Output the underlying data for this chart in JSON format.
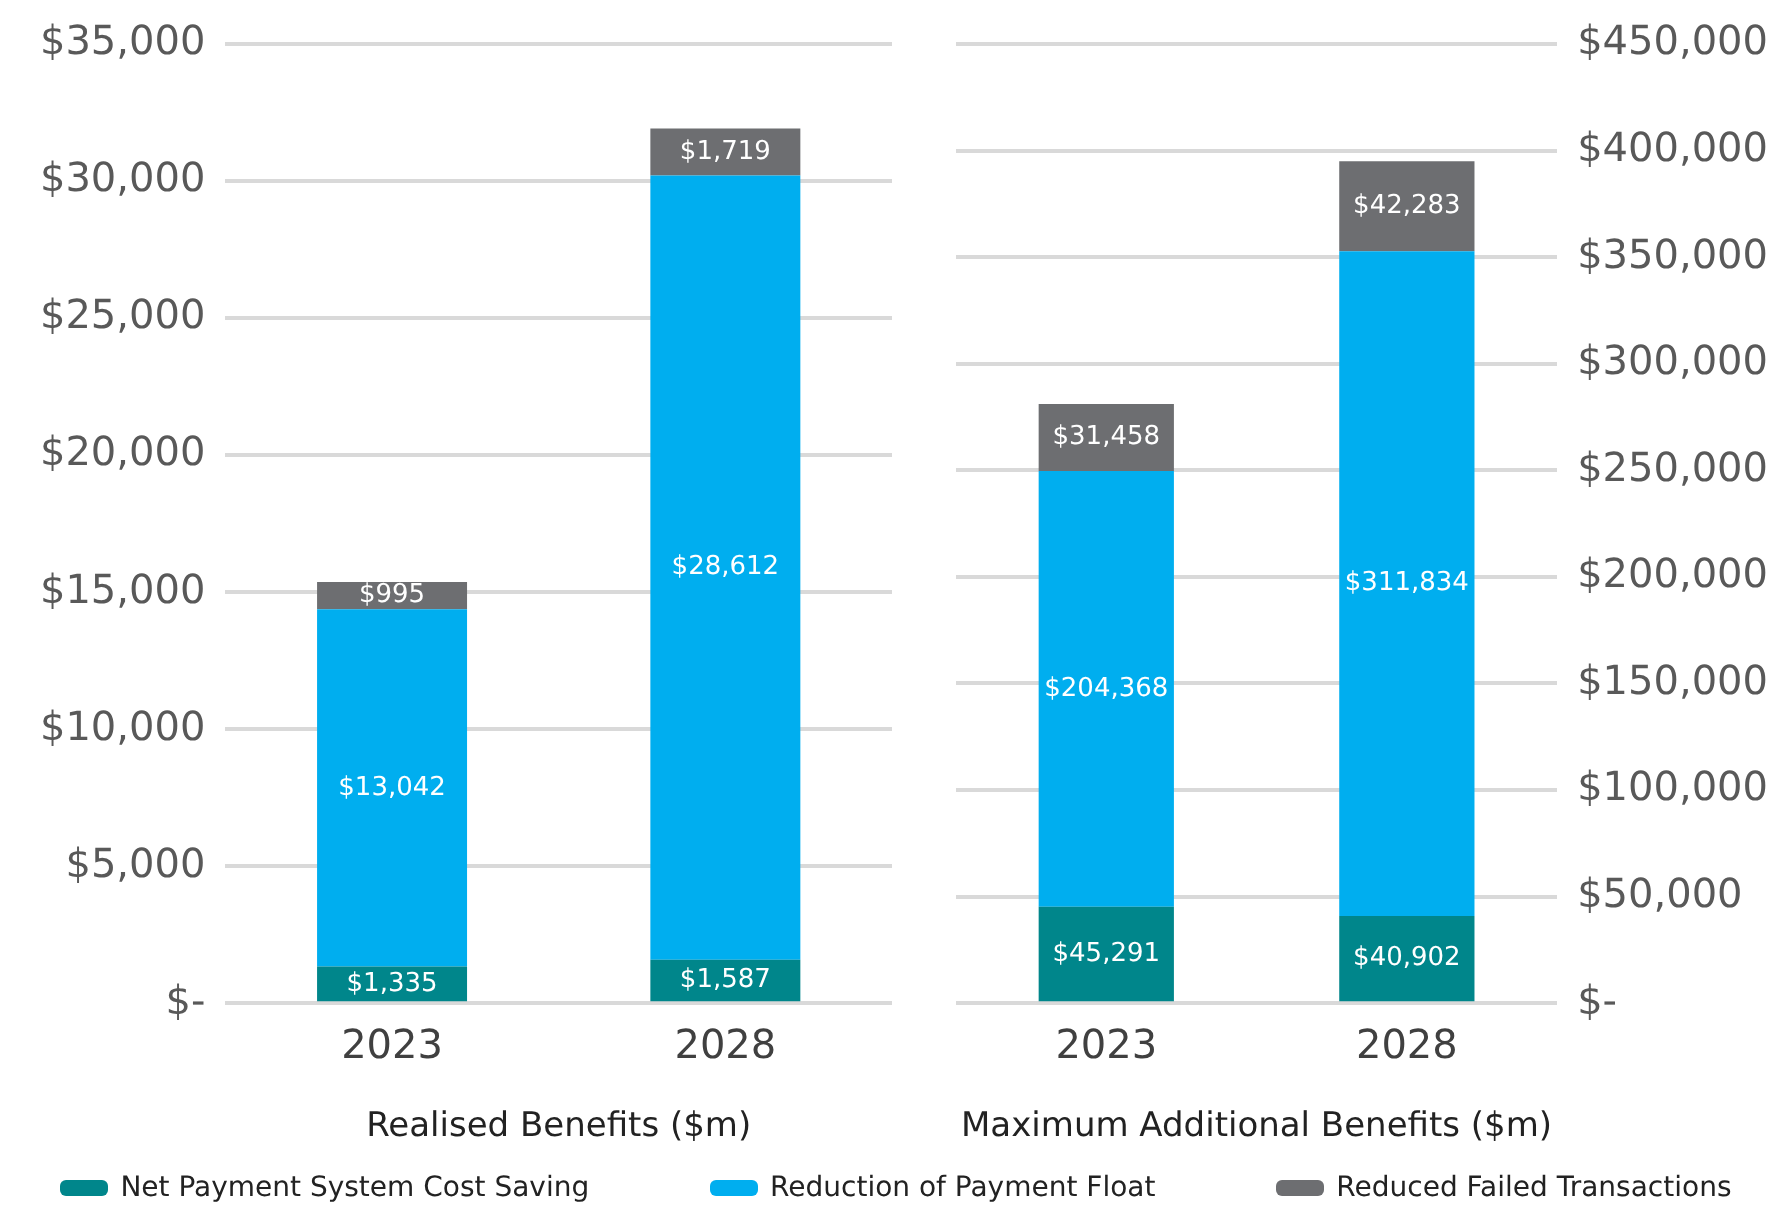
{
  "chart_data": [
    {
      "type": "bar",
      "stacked": true,
      "categories": [
        "2023",
        "2028"
      ],
      "xlabel": "Realised Benefits ($m)",
      "ylim": [
        0,
        35000
      ],
      "yticks": [
        {
          "value": 0,
          "label": "$-"
        },
        {
          "value": 5000,
          "label": "$5,000"
        },
        {
          "value": 10000,
          "label": "$10,000"
        },
        {
          "value": 15000,
          "label": "$15,000"
        },
        {
          "value": 20000,
          "label": "$20,000"
        },
        {
          "value": 25000,
          "label": "$25,000"
        },
        {
          "value": 30000,
          "label": "$30,000"
        },
        {
          "value": 35000,
          "label": "$35,000"
        }
      ],
      "grid": "y",
      "legend": "bottom",
      "series": [
        {
          "name": "Net Payment System Cost Saving",
          "color": "#00868b",
          "values": [
            1335,
            1587
          ],
          "value_labels": [
            "$1,335",
            "$1,587"
          ]
        },
        {
          "name": "Reduction of Payment Float",
          "color": "#00aeef",
          "values": [
            13042,
            28612
          ],
          "value_labels": [
            "$13,042",
            "$28,612"
          ]
        },
        {
          "name": "Reduced Failed Transactions",
          "color": "#6d6e71",
          "values": [
            995,
            1719
          ],
          "value_labels": [
            "$995",
            "$1,719"
          ]
        }
      ]
    },
    {
      "type": "bar",
      "stacked": true,
      "categories": [
        "2023",
        "2028"
      ],
      "xlabel": "Maximum Additional Benefits ($m)",
      "ylim": [
        0,
        450000
      ],
      "yticks": [
        {
          "value": 0,
          "label": "$-"
        },
        {
          "value": 50000,
          "label": "$50,000"
        },
        {
          "value": 100000,
          "label": "$100,000"
        },
        {
          "value": 150000,
          "label": "$150,000"
        },
        {
          "value": 200000,
          "label": "$200,000"
        },
        {
          "value": 250000,
          "label": "$250,000"
        },
        {
          "value": 300000,
          "label": "$300,000"
        },
        {
          "value": 350000,
          "label": "$350,000"
        },
        {
          "value": 400000,
          "label": "$400,000"
        },
        {
          "value": 450000,
          "label": "$450,000"
        }
      ],
      "grid": "y",
      "legend": "bottom",
      "series": [
        {
          "name": "Net Payment System Cost Saving",
          "color": "#00868b",
          "values": [
            45291,
            40902
          ],
          "value_labels": [
            "$45,291",
            "$40,902"
          ]
        },
        {
          "name": "Reduction of Payment Float",
          "color": "#00aeef",
          "values": [
            204368,
            311834
          ],
          "value_labels": [
            "$204,368",
            "$311,834"
          ]
        },
        {
          "name": "Reduced Failed Transactions",
          "color": "#6d6e71",
          "values": [
            31458,
            42283
          ],
          "value_labels": [
            "$31,458",
            "$42,283"
          ]
        }
      ]
    }
  ]
}
